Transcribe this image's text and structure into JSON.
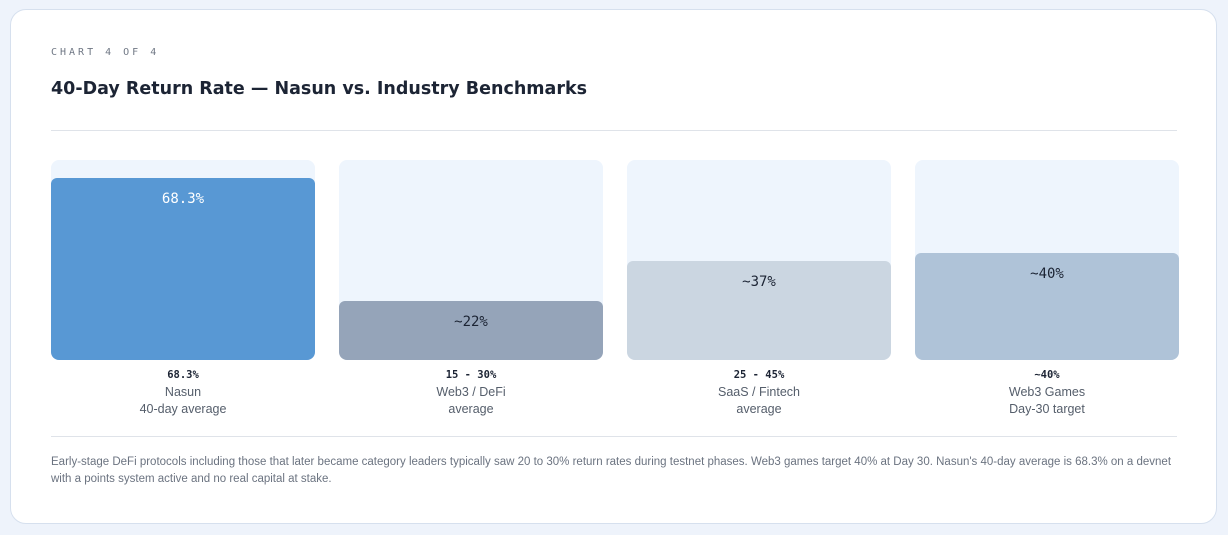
{
  "header": {
    "eyebrow": "CHART 4 OF 4",
    "title": "40-Day Return Rate — Nasun vs. Industry Benchmarks"
  },
  "chart_data": {
    "type": "bar",
    "title": "40-Day Return Rate — Nasun vs. Industry Benchmarks",
    "categories": [
      "Nasun",
      "Web3 / DeFi",
      "SaaS / Fintech",
      "Web3 Games"
    ],
    "values": [
      68.3,
      22,
      37,
      40
    ],
    "unit": "%",
    "ylim": [
      0,
      75
    ],
    "grid": false,
    "bars": [
      {
        "value": 68.3,
        "bar_label": "68.3%",
        "range_label": "68.3%",
        "name": "Nasun",
        "subtitle": "40-day average",
        "color": "#5898d4",
        "label_color": "#ffffff"
      },
      {
        "value": 22,
        "bar_label": "~22%",
        "range_label": "15 - 30%",
        "name": "Web3 / DeFi",
        "subtitle": "average",
        "color": "#95a4b9",
        "label_color": "#1c2434"
      },
      {
        "value": 37,
        "bar_label": "~37%",
        "range_label": "25 - 45%",
        "name": "SaaS / Fintech",
        "subtitle": "average",
        "color": "#cbd6e1",
        "label_color": "#1c2434"
      },
      {
        "value": 40,
        "bar_label": "~40%",
        "range_label": "~40%",
        "name": "Web3 Games",
        "subtitle": "Day-30 target",
        "color": "#afc3d8",
        "label_color": "#1c2434"
      }
    ]
  },
  "footer": {
    "note": "Early-stage DeFi protocols including those that later became category leaders typically saw 20 to 30% return rates during testnet phases. Web3 games target 40% at Day 30. Nasun's 40-day average is 68.3% on a devnet with a points system active and no real capital at stake."
  }
}
